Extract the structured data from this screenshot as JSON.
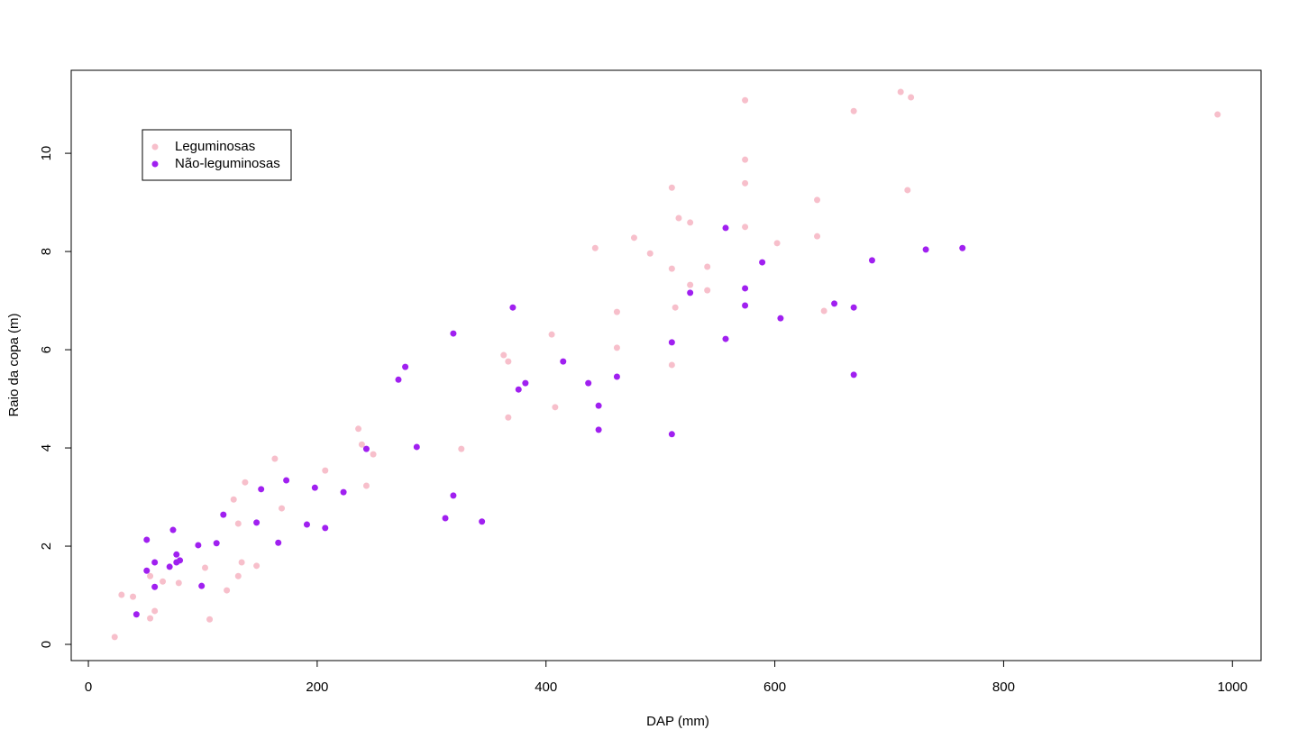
{
  "chart_data": {
    "type": "scatter",
    "xlabel": "DAP (mm)",
    "ylabel": "Raio da copa (m)",
    "xlim": [
      -15,
      1025
    ],
    "ylim": [
      -0.33,
      11.69
    ],
    "xticks": [
      0,
      200,
      400,
      600,
      800,
      1000
    ],
    "yticks": [
      0,
      2,
      4,
      6,
      8,
      10
    ],
    "legend": "top-left",
    "series": [
      {
        "name": "Leguminosas",
        "color": "#f7bfcb",
        "x": [
          23,
          29,
          39,
          54,
          54,
          58,
          65,
          79,
          102,
          106,
          121,
          127,
          131,
          131,
          134,
          137,
          147,
          163,
          169,
          207,
          236,
          239,
          243,
          249,
          326,
          363,
          367,
          367,
          405,
          408,
          443,
          462,
          462,
          477,
          491,
          510,
          510,
          510,
          513,
          516,
          526,
          526,
          541,
          541,
          574,
          574,
          574,
          574,
          602,
          637,
          637,
          643,
          669,
          710,
          716,
          719,
          987
        ],
        "values": [
          0.15,
          1.01,
          0.97,
          0.53,
          1.39,
          0.68,
          1.28,
          1.25,
          1.56,
          0.51,
          1.1,
          2.95,
          2.46,
          1.39,
          1.67,
          3.3,
          1.6,
          3.78,
          2.77,
          3.54,
          4.39,
          4.07,
          3.23,
          3.87,
          3.98,
          5.89,
          5.76,
          4.62,
          6.31,
          4.83,
          8.07,
          6.77,
          6.04,
          8.28,
          7.96,
          9.3,
          7.65,
          5.69,
          6.86,
          8.68,
          8.59,
          7.32,
          7.69,
          7.21,
          11.08,
          9.87,
          9.39,
          8.5,
          8.17,
          9.05,
          8.31,
          6.79,
          10.86,
          11.25,
          9.25,
          11.14,
          10.79
        ]
      },
      {
        "name": "Não-leguminosas",
        "color": "#a020f0",
        "x": [
          42,
          51,
          51,
          58,
          58,
          71,
          74,
          77,
          77,
          80,
          96,
          99,
          112,
          118,
          147,
          151,
          166,
          173,
          191,
          198,
          207,
          223,
          243,
          271,
          277,
          287,
          312,
          319,
          319,
          344,
          371,
          376,
          382,
          415,
          437,
          446,
          446,
          462,
          510,
          510,
          526,
          557,
          557,
          574,
          574,
          589,
          605,
          652,
          669,
          669,
          685,
          732,
          764
        ],
        "values": [
          0.61,
          2.13,
          1.5,
          1.67,
          1.17,
          1.58,
          2.33,
          1.83,
          1.67,
          1.71,
          2.02,
          1.19,
          2.06,
          2.64,
          2.48,
          3.16,
          2.07,
          3.34,
          2.44,
          3.19,
          2.37,
          3.1,
          3.98,
          5.39,
          5.65,
          4.02,
          2.57,
          6.33,
          3.03,
          2.5,
          6.86,
          5.19,
          5.32,
          5.76,
          5.32,
          4.86,
          4.37,
          5.45,
          6.15,
          4.28,
          7.16,
          8.48,
          6.22,
          7.25,
          6.9,
          7.78,
          6.64,
          6.94,
          6.86,
          5.49,
          7.82,
          8.04,
          8.07
        ]
      }
    ]
  }
}
